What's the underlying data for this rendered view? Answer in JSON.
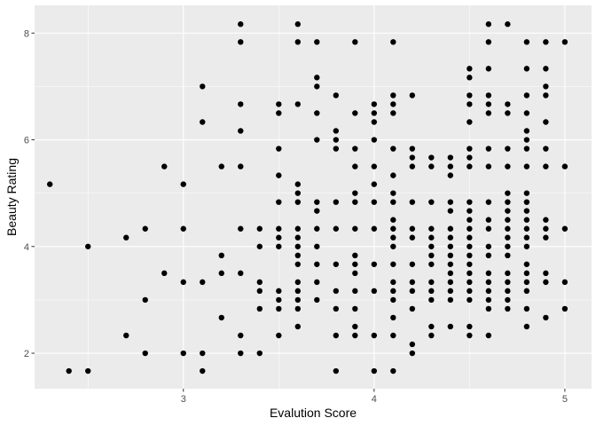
{
  "chart_data": {
    "type": "scatter",
    "title": "",
    "xlabel": "Evalution Score",
    "ylabel": "Beauty Rating",
    "xlim": [
      2.22,
      5.14
    ],
    "ylim": [
      1.335,
      8.52
    ],
    "x_ticks": [
      3,
      4,
      5
    ],
    "x_minor_ticks": [
      2.5,
      3.5,
      4.5
    ],
    "y_ticks": [
      2,
      4,
      6,
      8
    ],
    "y_minor_ticks": [
      3,
      5,
      7
    ],
    "x_tick_labels": [
      "3",
      "4",
      "5"
    ],
    "y_tick_labels": [
      "2",
      "4",
      "6",
      "8"
    ],
    "grid": true,
    "colors": {
      "panel": "#EBEBEB",
      "grid": "#FFFFFF",
      "point": "#000000",
      "tick": "#333333"
    },
    "points": [
      [
        2.3,
        5.167
      ],
      [
        2.4,
        1.667
      ],
      [
        2.5,
        1.667
      ],
      [
        2.5,
        4.0
      ],
      [
        2.7,
        2.333
      ],
      [
        2.7,
        4.167
      ],
      [
        2.8,
        2.0
      ],
      [
        2.8,
        3.0
      ],
      [
        2.8,
        4.333
      ],
      [
        2.9,
        3.5
      ],
      [
        2.9,
        5.5
      ],
      [
        3.0,
        2.0
      ],
      [
        3.0,
        3.333
      ],
      [
        3.0,
        4.333
      ],
      [
        3.0,
        5.167
      ],
      [
        3.1,
        1.667
      ],
      [
        3.1,
        2.0
      ],
      [
        3.1,
        3.333
      ],
      [
        3.1,
        6.333
      ],
      [
        3.1,
        7.0
      ],
      [
        3.2,
        2.667
      ],
      [
        3.2,
        3.5
      ],
      [
        3.2,
        3.833
      ],
      [
        3.2,
        5.5
      ],
      [
        3.3,
        2.0
      ],
      [
        3.3,
        2.333
      ],
      [
        3.3,
        3.5
      ],
      [
        3.3,
        4.333
      ],
      [
        3.3,
        5.5
      ],
      [
        3.3,
        6.167
      ],
      [
        3.3,
        6.667
      ],
      [
        3.3,
        7.833
      ],
      [
        3.3,
        8.167
      ],
      [
        3.4,
        2.0
      ],
      [
        3.4,
        2.833
      ],
      [
        3.4,
        3.167
      ],
      [
        3.4,
        3.333
      ],
      [
        3.4,
        4.0
      ],
      [
        3.4,
        4.333
      ],
      [
        3.5,
        2.333
      ],
      [
        3.5,
        2.833
      ],
      [
        3.5,
        3.0
      ],
      [
        3.5,
        3.167
      ],
      [
        3.5,
        4.0
      ],
      [
        3.5,
        4.167
      ],
      [
        3.5,
        4.333
      ],
      [
        3.5,
        4.833
      ],
      [
        3.5,
        5.333
      ],
      [
        3.5,
        5.833
      ],
      [
        3.5,
        6.5
      ],
      [
        3.5,
        6.667
      ],
      [
        3.6,
        2.5
      ],
      [
        3.6,
        2.833
      ],
      [
        3.6,
        3.0
      ],
      [
        3.6,
        3.167
      ],
      [
        3.6,
        3.333
      ],
      [
        3.6,
        3.667
      ],
      [
        3.6,
        3.833
      ],
      [
        3.6,
        4.0
      ],
      [
        3.6,
        4.167
      ],
      [
        3.6,
        4.333
      ],
      [
        3.6,
        4.833
      ],
      [
        3.6,
        5.0
      ],
      [
        3.6,
        5.167
      ],
      [
        3.6,
        6.667
      ],
      [
        3.6,
        7.833
      ],
      [
        3.6,
        8.167
      ],
      [
        3.7,
        3.0
      ],
      [
        3.7,
        3.333
      ],
      [
        3.7,
        3.667
      ],
      [
        3.7,
        4.0
      ],
      [
        3.7,
        4.333
      ],
      [
        3.7,
        4.667
      ],
      [
        3.7,
        4.833
      ],
      [
        3.7,
        6.0
      ],
      [
        3.7,
        6.5
      ],
      [
        3.7,
        7.0
      ],
      [
        3.7,
        7.167
      ],
      [
        3.7,
        7.833
      ],
      [
        3.8,
        1.667
      ],
      [
        3.8,
        2.333
      ],
      [
        3.8,
        2.833
      ],
      [
        3.8,
        3.167
      ],
      [
        3.8,
        3.667
      ],
      [
        3.8,
        4.333
      ],
      [
        3.8,
        4.833
      ],
      [
        3.8,
        5.833
      ],
      [
        3.8,
        6.0
      ],
      [
        3.8,
        6.167
      ],
      [
        3.8,
        6.833
      ],
      [
        3.9,
        2.333
      ],
      [
        3.9,
        2.5
      ],
      [
        3.9,
        2.833
      ],
      [
        3.9,
        3.167
      ],
      [
        3.9,
        3.5
      ],
      [
        3.9,
        3.667
      ],
      [
        3.9,
        3.833
      ],
      [
        3.9,
        4.333
      ],
      [
        3.9,
        4.833
      ],
      [
        3.9,
        5.0
      ],
      [
        3.9,
        5.5
      ],
      [
        3.9,
        5.833
      ],
      [
        3.9,
        6.5
      ],
      [
        3.9,
        7.833
      ],
      [
        4.0,
        1.667
      ],
      [
        4.0,
        2.333
      ],
      [
        4.0,
        3.167
      ],
      [
        4.0,
        3.667
      ],
      [
        4.0,
        4.333
      ],
      [
        4.0,
        4.833
      ],
      [
        4.0,
        5.167
      ],
      [
        4.0,
        5.5
      ],
      [
        4.0,
        6.0
      ],
      [
        4.0,
        6.333
      ],
      [
        4.0,
        6.5
      ],
      [
        4.0,
        6.667
      ],
      [
        4.1,
        1.667
      ],
      [
        4.1,
        2.333
      ],
      [
        4.1,
        2.667
      ],
      [
        4.1,
        3.0
      ],
      [
        4.1,
        3.167
      ],
      [
        4.1,
        3.333
      ],
      [
        4.1,
        3.667
      ],
      [
        4.1,
        4.0
      ],
      [
        4.1,
        4.167
      ],
      [
        4.1,
        4.333
      ],
      [
        4.1,
        4.5
      ],
      [
        4.1,
        4.833
      ],
      [
        4.1,
        5.0
      ],
      [
        4.1,
        5.333
      ],
      [
        4.1,
        5.833
      ],
      [
        4.1,
        6.5
      ],
      [
        4.1,
        6.667
      ],
      [
        4.1,
        6.833
      ],
      [
        4.1,
        7.833
      ],
      [
        4.2,
        2.0
      ],
      [
        4.2,
        2.167
      ],
      [
        4.2,
        2.833
      ],
      [
        4.2,
        3.167
      ],
      [
        4.2,
        3.333
      ],
      [
        4.2,
        3.667
      ],
      [
        4.2,
        4.167
      ],
      [
        4.2,
        4.333
      ],
      [
        4.2,
        4.833
      ],
      [
        4.2,
        5.5
      ],
      [
        4.2,
        5.667
      ],
      [
        4.2,
        5.833
      ],
      [
        4.2,
        6.833
      ],
      [
        4.3,
        2.333
      ],
      [
        4.3,
        2.5
      ],
      [
        4.3,
        3.0
      ],
      [
        4.3,
        3.167
      ],
      [
        4.3,
        3.333
      ],
      [
        4.3,
        3.667
      ],
      [
        4.3,
        3.833
      ],
      [
        4.3,
        4.0
      ],
      [
        4.3,
        4.167
      ],
      [
        4.3,
        4.333
      ],
      [
        4.3,
        4.833
      ],
      [
        4.3,
        5.5
      ],
      [
        4.3,
        5.667
      ],
      [
        4.4,
        2.5
      ],
      [
        4.4,
        3.0
      ],
      [
        4.4,
        3.167
      ],
      [
        4.4,
        3.333
      ],
      [
        4.4,
        3.5
      ],
      [
        4.4,
        3.667
      ],
      [
        4.4,
        3.833
      ],
      [
        4.4,
        4.0
      ],
      [
        4.4,
        4.167
      ],
      [
        4.4,
        4.333
      ],
      [
        4.4,
        4.667
      ],
      [
        4.4,
        4.833
      ],
      [
        4.4,
        5.333
      ],
      [
        4.4,
        5.5
      ],
      [
        4.4,
        5.667
      ],
      [
        4.5,
        2.333
      ],
      [
        4.5,
        2.5
      ],
      [
        4.5,
        3.0
      ],
      [
        4.5,
        3.167
      ],
      [
        4.5,
        3.333
      ],
      [
        4.5,
        3.5
      ],
      [
        4.5,
        3.667
      ],
      [
        4.5,
        3.833
      ],
      [
        4.5,
        4.0
      ],
      [
        4.5,
        4.167
      ],
      [
        4.5,
        4.333
      ],
      [
        4.5,
        4.5
      ],
      [
        4.5,
        4.667
      ],
      [
        4.5,
        4.833
      ],
      [
        4.5,
        5.5
      ],
      [
        4.5,
        5.667
      ],
      [
        4.5,
        5.833
      ],
      [
        4.5,
        6.333
      ],
      [
        4.5,
        6.667
      ],
      [
        4.5,
        6.833
      ],
      [
        4.5,
        7.167
      ],
      [
        4.5,
        7.333
      ],
      [
        4.6,
        2.333
      ],
      [
        4.6,
        2.833
      ],
      [
        4.6,
        3.0
      ],
      [
        4.6,
        3.167
      ],
      [
        4.6,
        3.333
      ],
      [
        4.6,
        3.5
      ],
      [
        4.6,
        3.833
      ],
      [
        4.6,
        4.0
      ],
      [
        4.6,
        4.333
      ],
      [
        4.6,
        4.5
      ],
      [
        4.6,
        4.833
      ],
      [
        4.6,
        5.5
      ],
      [
        4.6,
        5.833
      ],
      [
        4.6,
        6.5
      ],
      [
        4.6,
        6.667
      ],
      [
        4.6,
        6.833
      ],
      [
        4.6,
        7.333
      ],
      [
        4.6,
        7.833
      ],
      [
        4.6,
        8.167
      ],
      [
        4.7,
        2.833
      ],
      [
        4.7,
        3.0
      ],
      [
        4.7,
        3.167
      ],
      [
        4.7,
        3.333
      ],
      [
        4.7,
        3.5
      ],
      [
        4.7,
        3.833
      ],
      [
        4.7,
        4.0
      ],
      [
        4.7,
        4.167
      ],
      [
        4.7,
        4.333
      ],
      [
        4.7,
        4.5
      ],
      [
        4.7,
        4.667
      ],
      [
        4.7,
        4.833
      ],
      [
        4.7,
        5.0
      ],
      [
        4.7,
        5.5
      ],
      [
        4.7,
        5.833
      ],
      [
        4.7,
        6.5
      ],
      [
        4.7,
        6.667
      ],
      [
        4.7,
        8.167
      ],
      [
        4.8,
        2.5
      ],
      [
        4.8,
        2.833
      ],
      [
        4.8,
        3.167
      ],
      [
        4.8,
        3.333
      ],
      [
        4.8,
        3.5
      ],
      [
        4.8,
        3.667
      ],
      [
        4.8,
        4.0
      ],
      [
        4.8,
        4.167
      ],
      [
        4.8,
        4.333
      ],
      [
        4.8,
        4.5
      ],
      [
        4.8,
        4.667
      ],
      [
        4.8,
        4.833
      ],
      [
        4.8,
        5.0
      ],
      [
        4.8,
        5.5
      ],
      [
        4.8,
        5.833
      ],
      [
        4.8,
        6.0
      ],
      [
        4.8,
        6.167
      ],
      [
        4.8,
        6.5
      ],
      [
        4.8,
        6.833
      ],
      [
        4.8,
        7.333
      ],
      [
        4.8,
        7.833
      ],
      [
        4.9,
        2.667
      ],
      [
        4.9,
        3.333
      ],
      [
        4.9,
        3.5
      ],
      [
        4.9,
        4.167
      ],
      [
        4.9,
        4.333
      ],
      [
        4.9,
        4.5
      ],
      [
        4.9,
        5.5
      ],
      [
        4.9,
        5.833
      ],
      [
        4.9,
        6.333
      ],
      [
        4.9,
        6.833
      ],
      [
        4.9,
        7.0
      ],
      [
        4.9,
        7.333
      ],
      [
        4.9,
        7.833
      ],
      [
        5.0,
        2.833
      ],
      [
        5.0,
        3.333
      ],
      [
        5.0,
        4.333
      ],
      [
        5.0,
        5.5
      ],
      [
        5.0,
        7.833
      ]
    ]
  }
}
